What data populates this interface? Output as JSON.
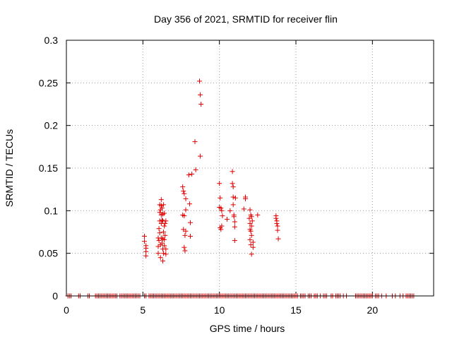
{
  "chart_data": {
    "type": "scatter",
    "title": "Day 356 of 2021, SRMTID for receiver flin",
    "xlabel": "GPS time / hours",
    "ylabel": "SRMTID / TECUs",
    "xlim": [
      0,
      24
    ],
    "ylim": [
      0,
      0.3
    ],
    "xticks": [
      0,
      5,
      10,
      15,
      20
    ],
    "xtick_labels": [
      "0",
      "5",
      "10",
      "15",
      "20"
    ],
    "yticks": [
      0,
      0.05,
      0.1,
      0.15,
      0.2,
      0.25,
      0.3
    ],
    "ytick_labels": [
      "0",
      "0.05",
      "0.1",
      "0.15",
      "0.2",
      "0.25",
      "0.3"
    ],
    "grid": true,
    "marker": "+",
    "series": [
      {
        "color": "#e00000",
        "x": [
          5.1,
          5.1,
          5.2,
          5.2,
          5.2,
          5.2,
          6.0,
          6.0,
          6.0,
          6.05,
          6.05,
          6.1,
          6.1,
          6.1,
          6.1,
          6.15,
          6.15,
          6.15,
          6.2,
          6.2,
          6.2,
          6.2,
          6.2,
          6.25,
          6.25,
          6.25,
          6.3,
          6.3,
          6.3,
          6.3,
          6.3,
          6.35,
          6.35,
          6.35,
          6.4,
          6.4,
          6.4,
          6.4,
          6.45,
          6.45,
          6.5,
          6.5,
          6.5,
          7.6,
          7.6,
          7.65,
          7.65,
          7.7,
          7.7,
          7.7,
          7.75,
          7.75,
          7.8,
          7.8,
          7.8,
          8.0,
          8.05,
          8.1,
          8.1,
          8.2,
          8.4,
          8.45,
          8.7,
          8.75,
          8.75,
          8.8,
          10.0,
          10.0,
          10.05,
          10.05,
          10.1,
          10.1,
          10.15,
          10.15,
          10.2,
          10.5,
          10.7,
          10.85,
          10.85,
          10.9,
          10.9,
          10.9,
          10.95,
          10.95,
          11.0,
          11.0,
          11.0,
          11.05,
          11.6,
          11.7,
          11.7,
          11.95,
          12.0,
          12.0,
          12.0,
          12.0,
          12.05,
          12.05,
          12.05,
          12.1,
          12.1,
          12.1,
          12.1,
          12.15,
          12.2,
          12.2,
          12.5,
          13.7,
          13.7,
          13.75,
          13.75,
          13.8,
          13.8,
          13.85
        ],
        "y": [
          0.07,
          0.064,
          0.059,
          0.056,
          0.052,
          0.047,
          0.068,
          0.058,
          0.05,
          0.079,
          0.065,
          0.107,
          0.098,
          0.088,
          0.074,
          0.101,
          0.06,
          0.045,
          0.113,
          0.106,
          0.095,
          0.085,
          0.068,
          0.103,
          0.089,
          0.062,
          0.096,
          0.088,
          0.067,
          0.055,
          0.041,
          0.107,
          0.075,
          0.05,
          0.097,
          0.082,
          0.066,
          0.059,
          0.085,
          0.071,
          0.088,
          0.055,
          0.049,
          0.128,
          0.095,
          0.123,
          0.078,
          0.12,
          0.094,
          0.057,
          0.071,
          0.053,
          0.114,
          0.101,
          0.076,
          0.142,
          0.108,
          0.086,
          0.07,
          0.143,
          0.181,
          0.148,
          0.252,
          0.236,
          0.164,
          0.225,
          0.132,
          0.104,
          0.115,
          0.08,
          0.103,
          0.078,
          0.1,
          0.082,
          0.094,
          0.09,
          0.1,
          0.146,
          0.132,
          0.128,
          0.116,
          0.107,
          0.095,
          0.093,
          0.087,
          0.081,
          0.065,
          0.115,
          0.102,
          0.116,
          0.114,
          0.091,
          0.101,
          0.085,
          0.078,
          0.066,
          0.095,
          0.076,
          0.06,
          0.093,
          0.082,
          0.071,
          0.049,
          0.088,
          0.063,
          0.057,
          0.095,
          0.094,
          0.091,
          0.088,
          0.085,
          0.082,
          0.077,
          0.067
        ],
        "zero_x": [
          0.1,
          0.2,
          0.3,
          0.8,
          0.9,
          1.4,
          1.5,
          1.9,
          2.0,
          2.1,
          2.2,
          2.3,
          2.4,
          2.5,
          2.6,
          2.7,
          2.8,
          2.9,
          3.0,
          3.1,
          3.2,
          3.3,
          3.5,
          3.6,
          3.7,
          3.8,
          3.9,
          4.0,
          4.1,
          4.2,
          4.3,
          4.4,
          4.5,
          4.6,
          4.7,
          4.8,
          5.1,
          5.2,
          5.4,
          5.5,
          5.6,
          5.7,
          5.8,
          5.9,
          6.0,
          6.1,
          6.2,
          6.3,
          6.4,
          6.5,
          6.6,
          6.7,
          6.8,
          6.9,
          7.0,
          7.1,
          7.2,
          7.3,
          7.4,
          7.5,
          7.6,
          7.7,
          7.8,
          7.9,
          8.0,
          8.1,
          8.2,
          8.3,
          8.4,
          8.5,
          8.6,
          8.7,
          8.8,
          8.9,
          9.0,
          9.1,
          9.2,
          9.3,
          9.4,
          9.5,
          9.6,
          9.7,
          9.8,
          9.9,
          10.0,
          10.1,
          10.2,
          10.3,
          10.4,
          10.5,
          10.6,
          10.7,
          10.8,
          10.9,
          11.0,
          11.1,
          11.2,
          11.3,
          11.4,
          11.5,
          11.6,
          11.7,
          11.8,
          11.9,
          12.0,
          12.1,
          12.2,
          12.3,
          12.4,
          12.5,
          12.6,
          12.7,
          12.8,
          12.9,
          13.0,
          13.1,
          13.2,
          13.3,
          13.4,
          13.5,
          13.6,
          13.7,
          13.8,
          13.9,
          14.0,
          14.1,
          14.2,
          14.3,
          14.4,
          14.5,
          14.6,
          14.7,
          14.8,
          14.9,
          15.0,
          15.1,
          15.3,
          15.4,
          15.5,
          15.6,
          15.8,
          15.9,
          16.0,
          16.2,
          16.3,
          16.4,
          16.6,
          16.8,
          16.9,
          17.0,
          17.3,
          17.4,
          17.6,
          17.7,
          17.8,
          17.9,
          18.1,
          18.3,
          18.9,
          19.0,
          19.1,
          19.2,
          19.3,
          19.4,
          19.5,
          19.6,
          19.7,
          19.8,
          19.9,
          20.0,
          20.2,
          20.3,
          20.4,
          20.6,
          20.9,
          21.3,
          21.5,
          21.8,
          22.0,
          22.2,
          22.3,
          22.4,
          22.5,
          22.6,
          22.7
        ]
      }
    ]
  }
}
